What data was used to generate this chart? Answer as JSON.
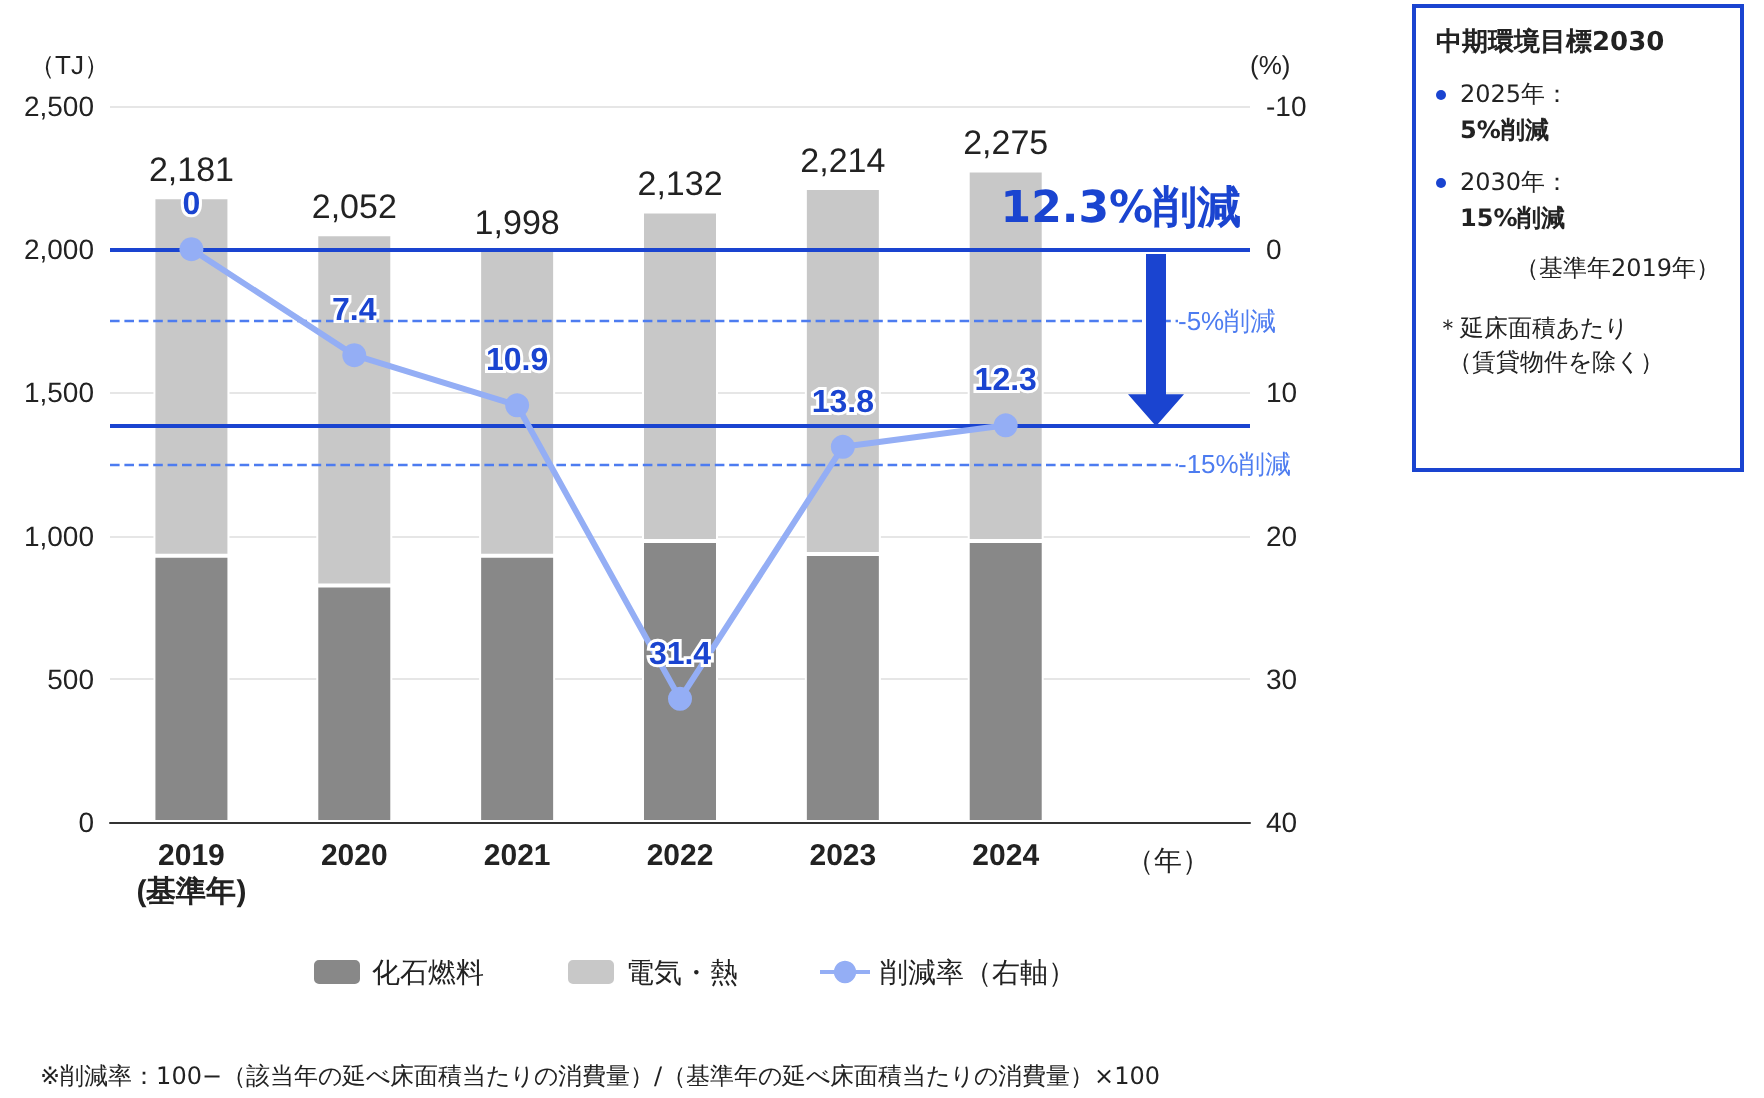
{
  "chart_data": {
    "type": "bar",
    "stacked": true,
    "categories": [
      "2019\n(基準年)",
      "2020",
      "2021",
      "2022",
      "2023",
      "2024"
    ],
    "xlabel": "（年）",
    "ylabel": "（TJ）",
    "y2label": "(%)",
    "series": [
      {
        "name": "化石燃料",
        "color": "#888888",
        "values": [
          930,
          826,
          930,
          981,
          936,
          981
        ]
      },
      {
        "name": "電気・熱",
        "color": "#c8c8c8",
        "values": [
          1251,
          1226,
          1068,
          1151,
          1278,
          1294
        ]
      },
      {
        "name": "削減率（右軸）",
        "type": "line",
        "axis": "y2",
        "color": "#94aef5",
        "marker": "circle",
        "values": [
          0,
          7.4,
          10.9,
          31.4,
          13.8,
          12.3
        ],
        "value_labels": [
          "0",
          "7.4",
          "10.9",
          "31.4",
          "13.8",
          "12.3"
        ]
      }
    ],
    "totals": [
      "2,181",
      "2,052",
      "1,998",
      "2,132",
      "2,214",
      "2,275"
    ],
    "ylim": [
      0,
      2500
    ],
    "yticks": [
      0,
      500,
      {
        "value": 1000,
        "label": "1,000"
      },
      {
        "value": 1500,
        "label": "1,500"
      },
      {
        "value": 2000,
        "label": "2,000"
      },
      {
        "value": 2500,
        "label": "2,500"
      }
    ],
    "y2lim": [
      40,
      -10
    ],
    "y2ticks": [
      -10,
      0,
      10,
      20,
      30,
      40
    ],
    "ref_lines": [
      {
        "axis": "y2",
        "value": 0,
        "color": "#1a44d0",
        "line_style": "solid"
      },
      {
        "axis": "y2",
        "value": 5,
        "label": "-5%削減",
        "color": "#4d7cf0",
        "line_style": "dashed"
      },
      {
        "axis": "y2",
        "value": 15,
        "label": "-15%削減",
        "color": "#4d7cf0",
        "line_style": "dashed"
      },
      {
        "axis": "y2",
        "value": 12.3,
        "color": "#1a44d0",
        "line_style": "solid"
      }
    ],
    "annotations": [
      "12.3%削減",
      "中期環境目標2030",
      "2025年：",
      "5%削減",
      "2030年：",
      "15%削減",
      "（基準年2019年）",
      "＊延床面積あたり",
      "（賃貸物件を除く）",
      "※削減率：100−（該当年の延べ床面積当たりの消費量）/（基準年の延べ床面積当たりの消費量）×100"
    ],
    "grid": "y",
    "legend": "bottom"
  }
}
